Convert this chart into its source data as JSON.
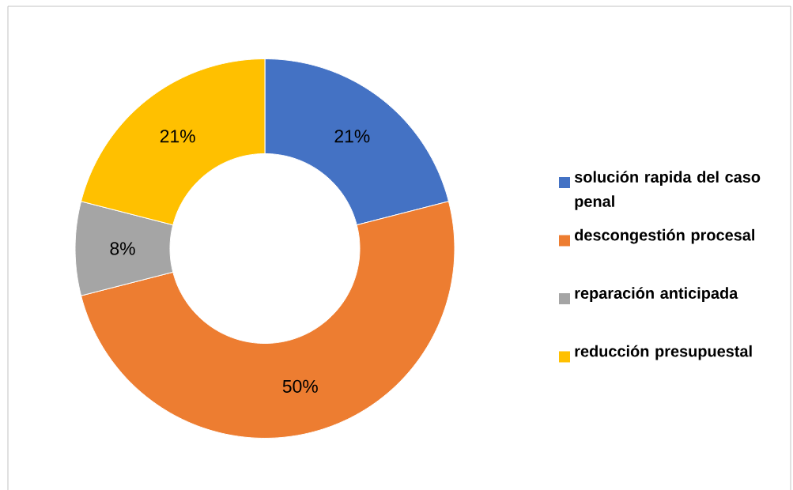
{
  "chart_data": {
    "type": "donut",
    "categories": [
      "solución rapida del caso penal",
      "descongestión procesal",
      "reparación anticipada",
      "reducción presupuestal"
    ],
    "values": [
      21,
      50,
      8,
      21
    ],
    "colors": [
      "#4472c4",
      "#ed7d31",
      "#a5a5a5",
      "#ffc000"
    ],
    "value_labels": [
      "21%",
      "50%",
      "8%",
      "21%"
    ],
    "legend": "right"
  }
}
